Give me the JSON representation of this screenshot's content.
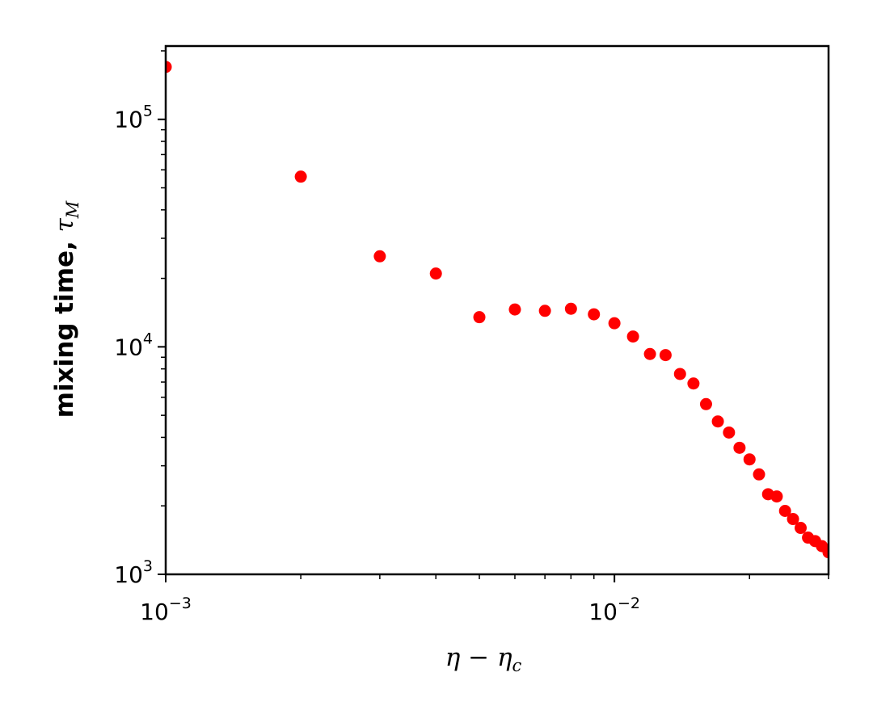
{
  "chart_data": {
    "type": "scatter",
    "xscale": "log",
    "yscale": "log",
    "xlim": [
      0.001,
      0.03
    ],
    "ylim": [
      1000,
      210000
    ],
    "xlabel": {
      "main": "η − η",
      "sub": "c"
    },
    "ylabel": {
      "main": "mixing time, ",
      "sym": "τ",
      "sub": "M"
    },
    "x_ticks": [
      {
        "value": 0.001,
        "base": "10",
        "exp": "−3"
      },
      {
        "value": 0.01,
        "base": "10",
        "exp": "−2"
      }
    ],
    "y_ticks": [
      {
        "value": 1000,
        "base": "10",
        "exp": "3"
      },
      {
        "value": 10000,
        "base": "10",
        "exp": "4"
      },
      {
        "value": 100000,
        "base": "10",
        "exp": "5"
      }
    ],
    "grid": false,
    "legend": "none",
    "marker_color": "#ff0000",
    "points": [
      {
        "x": 0.001,
        "y": 170000
      },
      {
        "x": 0.002,
        "y": 56000
      },
      {
        "x": 0.003,
        "y": 25000
      },
      {
        "x": 0.004,
        "y": 21000
      },
      {
        "x": 0.005,
        "y": 13500
      },
      {
        "x": 0.006,
        "y": 14600
      },
      {
        "x": 0.007,
        "y": 14400
      },
      {
        "x": 0.008,
        "y": 14700
      },
      {
        "x": 0.009,
        "y": 13900
      },
      {
        "x": 0.01,
        "y": 12700
      },
      {
        "x": 0.011,
        "y": 11100
      },
      {
        "x": 0.012,
        "y": 9300
      },
      {
        "x": 0.013,
        "y": 9200
      },
      {
        "x": 0.014,
        "y": 7600
      },
      {
        "x": 0.015,
        "y": 6900
      },
      {
        "x": 0.016,
        "y": 5600
      },
      {
        "x": 0.017,
        "y": 4700
      },
      {
        "x": 0.018,
        "y": 4200
      },
      {
        "x": 0.019,
        "y": 3600
      },
      {
        "x": 0.02,
        "y": 3200
      },
      {
        "x": 0.021,
        "y": 2750
      },
      {
        "x": 0.022,
        "y": 2250
      },
      {
        "x": 0.023,
        "y": 2200
      },
      {
        "x": 0.024,
        "y": 1900
      },
      {
        "x": 0.025,
        "y": 1750
      },
      {
        "x": 0.026,
        "y": 1600
      },
      {
        "x": 0.027,
        "y": 1450
      },
      {
        "x": 0.028,
        "y": 1400
      },
      {
        "x": 0.029,
        "y": 1330
      },
      {
        "x": 0.03,
        "y": 1250
      }
    ]
  }
}
